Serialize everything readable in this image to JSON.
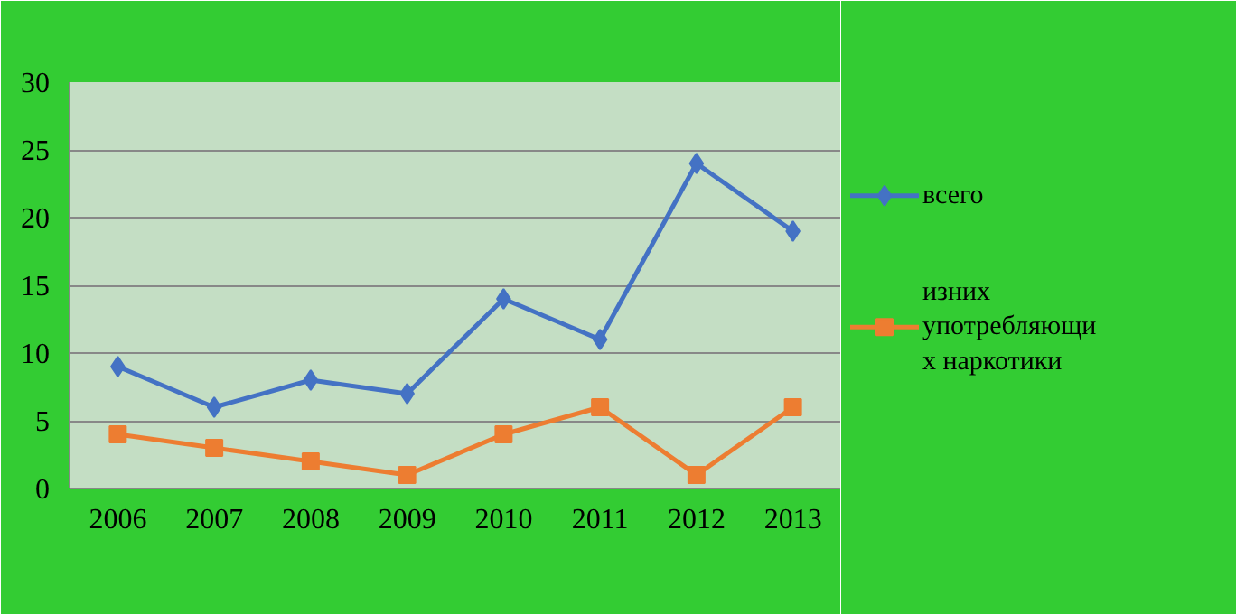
{
  "chart_data": {
    "type": "line",
    "categories": [
      "2006",
      "2007",
      "2008",
      "2009",
      "2010",
      "2011",
      "2012",
      "2013"
    ],
    "series": [
      {
        "name": "всего",
        "color": "#4472c4",
        "marker": "diamond",
        "values": [
          9,
          6,
          8,
          7,
          14,
          11,
          24,
          19
        ]
      },
      {
        "name": "изних употребляющих наркотики",
        "color": "#ed7d31",
        "marker": "square",
        "values": [
          4,
          3,
          2,
          1,
          4,
          6,
          1,
          6
        ]
      }
    ],
    "ylim": [
      0,
      30
    ],
    "yticks": [
      0,
      5,
      10,
      15,
      20,
      25,
      30
    ],
    "grid": "y",
    "legend": "right"
  }
}
